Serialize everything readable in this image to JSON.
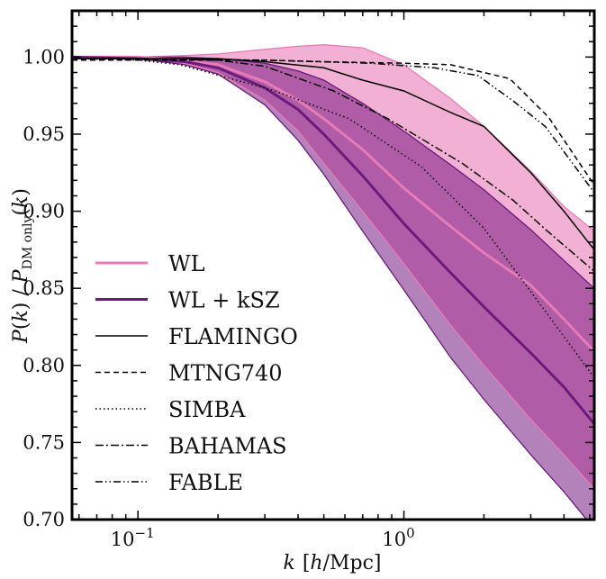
{
  "chart_data": {
    "type": "line",
    "title": "",
    "xlabel": "k  [h/Mpc]",
    "ylabel": "P(k) / P_DM only(k)",
    "xscale": "log",
    "xlim": [
      0.0565,
      5.2
    ],
    "ylim": [
      0.7,
      1.03
    ],
    "grid": false,
    "legend_position": "lower-left",
    "x_ticks": [
      {
        "value": 0.1,
        "base": "10",
        "exp": "−1"
      },
      {
        "value": 1.0,
        "base": "10",
        "exp": "0"
      }
    ],
    "y_ticks": [
      {
        "value": 1.0,
        "label": "1.00"
      },
      {
        "value": 0.95,
        "label": "0.95"
      },
      {
        "value": 0.9,
        "label": "0.90"
      },
      {
        "value": 0.85,
        "label": "0.85"
      },
      {
        "value": 0.8,
        "label": "0.80"
      },
      {
        "value": 0.75,
        "label": "0.75"
      },
      {
        "value": 0.7,
        "label": "0.70"
      }
    ],
    "k_grid": [
      0.0565,
      0.1,
      0.15,
      0.2,
      0.3,
      0.4,
      0.5,
      0.7,
      1.0,
      1.5,
      2.0,
      3.0,
      4.0,
      5.2
    ],
    "bands": [
      {
        "name": "WL",
        "color": "#f2b1d4",
        "upper": [
          1.0,
          1.0,
          1.001,
          1.002,
          1.005,
          1.007,
          1.008,
          1.006,
          0.995,
          0.973,
          0.955,
          0.926,
          0.903,
          0.887
        ],
        "median": [
          1.0,
          1.0,
          0.998,
          0.995,
          0.984,
          0.972,
          0.96,
          0.94,
          0.915,
          0.89,
          0.873,
          0.852,
          0.83,
          0.809
        ],
        "lower": [
          1.0,
          0.999,
          0.996,
          0.99,
          0.972,
          0.952,
          0.931,
          0.9,
          0.866,
          0.826,
          0.8,
          0.765,
          0.742,
          0.72
        ],
        "line_color": "#e77bb7"
      },
      {
        "name": "WL + kSZ",
        "color": "#b482bb",
        "upper": [
          1.0,
          1.0,
          1.0,
          0.999,
          0.996,
          0.991,
          0.985,
          0.97,
          0.952,
          0.93,
          0.914,
          0.888,
          0.868,
          0.85
        ],
        "median": [
          1.0,
          0.999,
          0.997,
          0.993,
          0.98,
          0.966,
          0.95,
          0.923,
          0.892,
          0.86,
          0.838,
          0.808,
          0.786,
          0.762
        ],
        "lower": [
          1.0,
          0.999,
          0.995,
          0.989,
          0.969,
          0.946,
          0.924,
          0.887,
          0.849,
          0.805,
          0.778,
          0.742,
          0.718,
          0.694
        ],
        "line_color": "#6a1b7c"
      }
    ],
    "overlap_color": "#b05ca6",
    "series": [
      {
        "name": "FLAMINGO",
        "style": "solid",
        "k": [
          0.0565,
          0.1,
          0.2,
          0.3,
          0.5,
          0.7,
          1.0,
          1.5,
          2.0,
          3.0,
          4.0,
          5.2
        ],
        "values": [
          0.999,
          0.999,
          0.999,
          0.997,
          0.993,
          0.985,
          0.978,
          0.964,
          0.955,
          0.925,
          0.9,
          0.875
        ]
      },
      {
        "name": "MTNG740",
        "style": "dashed",
        "k": [
          0.0565,
          0.1,
          0.3,
          0.5,
          1.0,
          1.5,
          2.5,
          3.5,
          5.2
        ],
        "values": [
          0.998,
          0.998,
          0.998,
          0.997,
          0.996,
          0.995,
          0.986,
          0.961,
          0.917
        ]
      },
      {
        "name": "SIMBA",
        "style": "dotted",
        "k": [
          0.0565,
          0.1,
          0.144,
          0.315,
          0.622,
          1.16,
          2.0,
          3.34,
          5.1
        ],
        "values": [
          0.999,
          0.998,
          0.995,
          0.979,
          0.96,
          0.929,
          0.889,
          0.837,
          0.794
        ]
      },
      {
        "name": "BAHAMAS",
        "style": "dashdot",
        "k": [
          0.0565,
          0.1,
          0.2,
          0.3,
          0.544,
          0.87,
          1.66,
          2.58,
          3.47,
          5.2
        ],
        "values": [
          0.999,
          0.999,
          0.998,
          0.994,
          0.978,
          0.96,
          0.931,
          0.907,
          0.887,
          0.861
        ]
      },
      {
        "name": "FABLE",
        "style": "dashdotdot",
        "k": [
          0.0565,
          0.1,
          0.3,
          0.75,
          1.3,
          1.9,
          2.6,
          3.4,
          5.2
        ],
        "values": [
          0.999,
          0.999,
          0.998,
          0.996,
          0.993,
          0.988,
          0.971,
          0.955,
          0.912
        ]
      }
    ],
    "legend": [
      {
        "label": "WL",
        "kind": "band-line",
        "color": "#e77bb7"
      },
      {
        "label": "WL + kSZ",
        "kind": "band-line",
        "color": "#6a1b7c"
      },
      {
        "label": "FLAMINGO",
        "kind": "line",
        "style": "solid"
      },
      {
        "label": "MTNG740",
        "kind": "line",
        "style": "dashed"
      },
      {
        "label": "SIMBA",
        "kind": "line",
        "style": "dotted"
      },
      {
        "label": "BAHAMAS",
        "kind": "line",
        "style": "dashdot"
      },
      {
        "label": "FABLE",
        "kind": "line",
        "style": "dashdotdot"
      }
    ]
  }
}
